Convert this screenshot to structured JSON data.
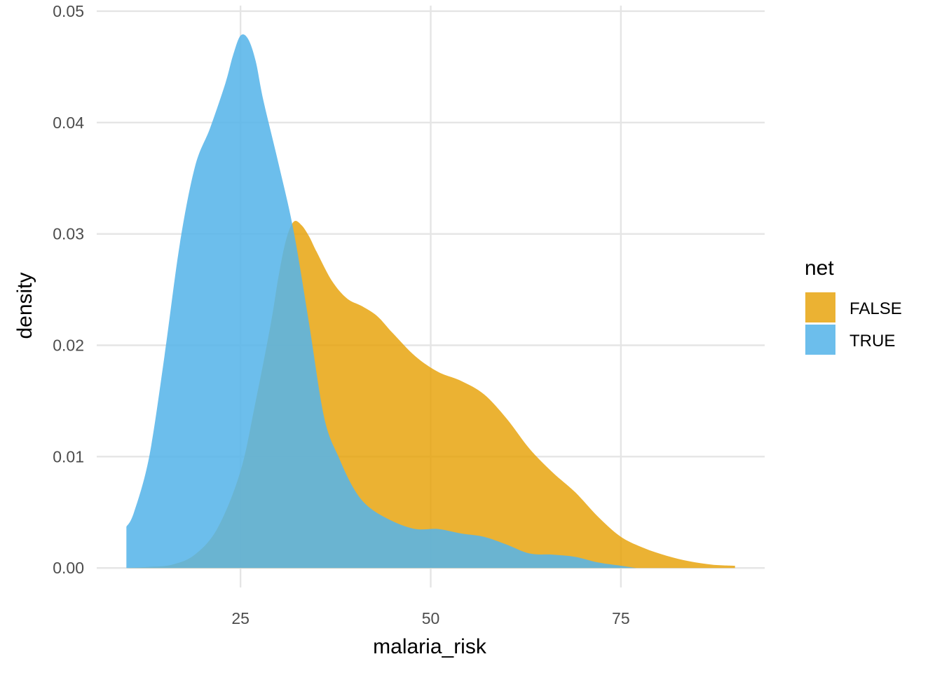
{
  "chart_data": {
    "type": "area",
    "subtype": "density",
    "title": "",
    "xlabel": "malaria_risk",
    "ylabel": "density",
    "xlim": [
      6.1,
      93.9
    ],
    "ylim": [
      -0.00175,
      0.0505
    ],
    "x_ticks": [
      25,
      50,
      75
    ],
    "y_ticks": [
      0.0,
      0.01,
      0.02,
      0.03,
      0.04,
      0.05
    ],
    "y_tick_labels": [
      "0.00",
      "0.01",
      "0.02",
      "0.03",
      "0.04",
      "0.05"
    ],
    "grid": true,
    "legend": {
      "title": "net",
      "position": "right"
    },
    "series": [
      {
        "name": "FALSE",
        "color": "#E69F00",
        "opacity": 0.8,
        "points": [
          [
            10.0,
            0.0
          ],
          [
            13.0,
            0.0001
          ],
          [
            16.0,
            0.0003
          ],
          [
            19.0,
            0.0012
          ],
          [
            22.0,
            0.0036
          ],
          [
            25.0,
            0.0087
          ],
          [
            27.0,
            0.015
          ],
          [
            29.0,
            0.022
          ],
          [
            30.0,
            0.0262
          ],
          [
            31.0,
            0.0295
          ],
          [
            32.0,
            0.0311
          ],
          [
            33.0,
            0.0308
          ],
          [
            34.0,
            0.0298
          ],
          [
            35.0,
            0.0284
          ],
          [
            37.0,
            0.0258
          ],
          [
            39.0,
            0.0242
          ],
          [
            41.0,
            0.0235
          ],
          [
            43.0,
            0.0226
          ],
          [
            45.0,
            0.0211
          ],
          [
            48.0,
            0.019
          ],
          [
            51.0,
            0.0176
          ],
          [
            54.0,
            0.0168
          ],
          [
            57.0,
            0.0156
          ],
          [
            60.0,
            0.0134
          ],
          [
            63.0,
            0.0107
          ],
          [
            66.0,
            0.0086
          ],
          [
            69.0,
            0.0068
          ],
          [
            72.0,
            0.0046
          ],
          [
            75.0,
            0.0028
          ],
          [
            78.0,
            0.0018
          ],
          [
            81.0,
            0.0011
          ],
          [
            84.0,
            0.0006
          ],
          [
            87.0,
            0.0003
          ],
          [
            90.0,
            0.0002
          ]
        ]
      },
      {
        "name": "TRUE",
        "color": "#56B4E9",
        "opacity": 0.87,
        "points": [
          [
            10.0,
            0.0037
          ],
          [
            11.0,
            0.005
          ],
          [
            13.0,
            0.01
          ],
          [
            15.0,
            0.019
          ],
          [
            17.0,
            0.029
          ],
          [
            19.0,
            0.036
          ],
          [
            21.0,
            0.0395
          ],
          [
            23.0,
            0.0435
          ],
          [
            24.0,
            0.046
          ],
          [
            25.0,
            0.0478
          ],
          [
            26.0,
            0.0475
          ],
          [
            27.0,
            0.0455
          ],
          [
            28.0,
            0.042
          ],
          [
            30.0,
            0.0363
          ],
          [
            32.0,
            0.0302
          ],
          [
            34.0,
            0.022
          ],
          [
            36.0,
            0.0135
          ],
          [
            38.0,
            0.0098
          ],
          [
            40.0,
            0.007
          ],
          [
            42.0,
            0.0054
          ],
          [
            45.0,
            0.0042
          ],
          [
            48.0,
            0.0035
          ],
          [
            51.0,
            0.0035
          ],
          [
            54.0,
            0.0031
          ],
          [
            57.0,
            0.0028
          ],
          [
            60.0,
            0.0021
          ],
          [
            63.0,
            0.0013
          ],
          [
            66.0,
            0.0012
          ],
          [
            69.0,
            0.001
          ],
          [
            72.0,
            0.0005
          ],
          [
            75.0,
            0.0002
          ],
          [
            77.0,
            0.0
          ]
        ]
      }
    ]
  }
}
